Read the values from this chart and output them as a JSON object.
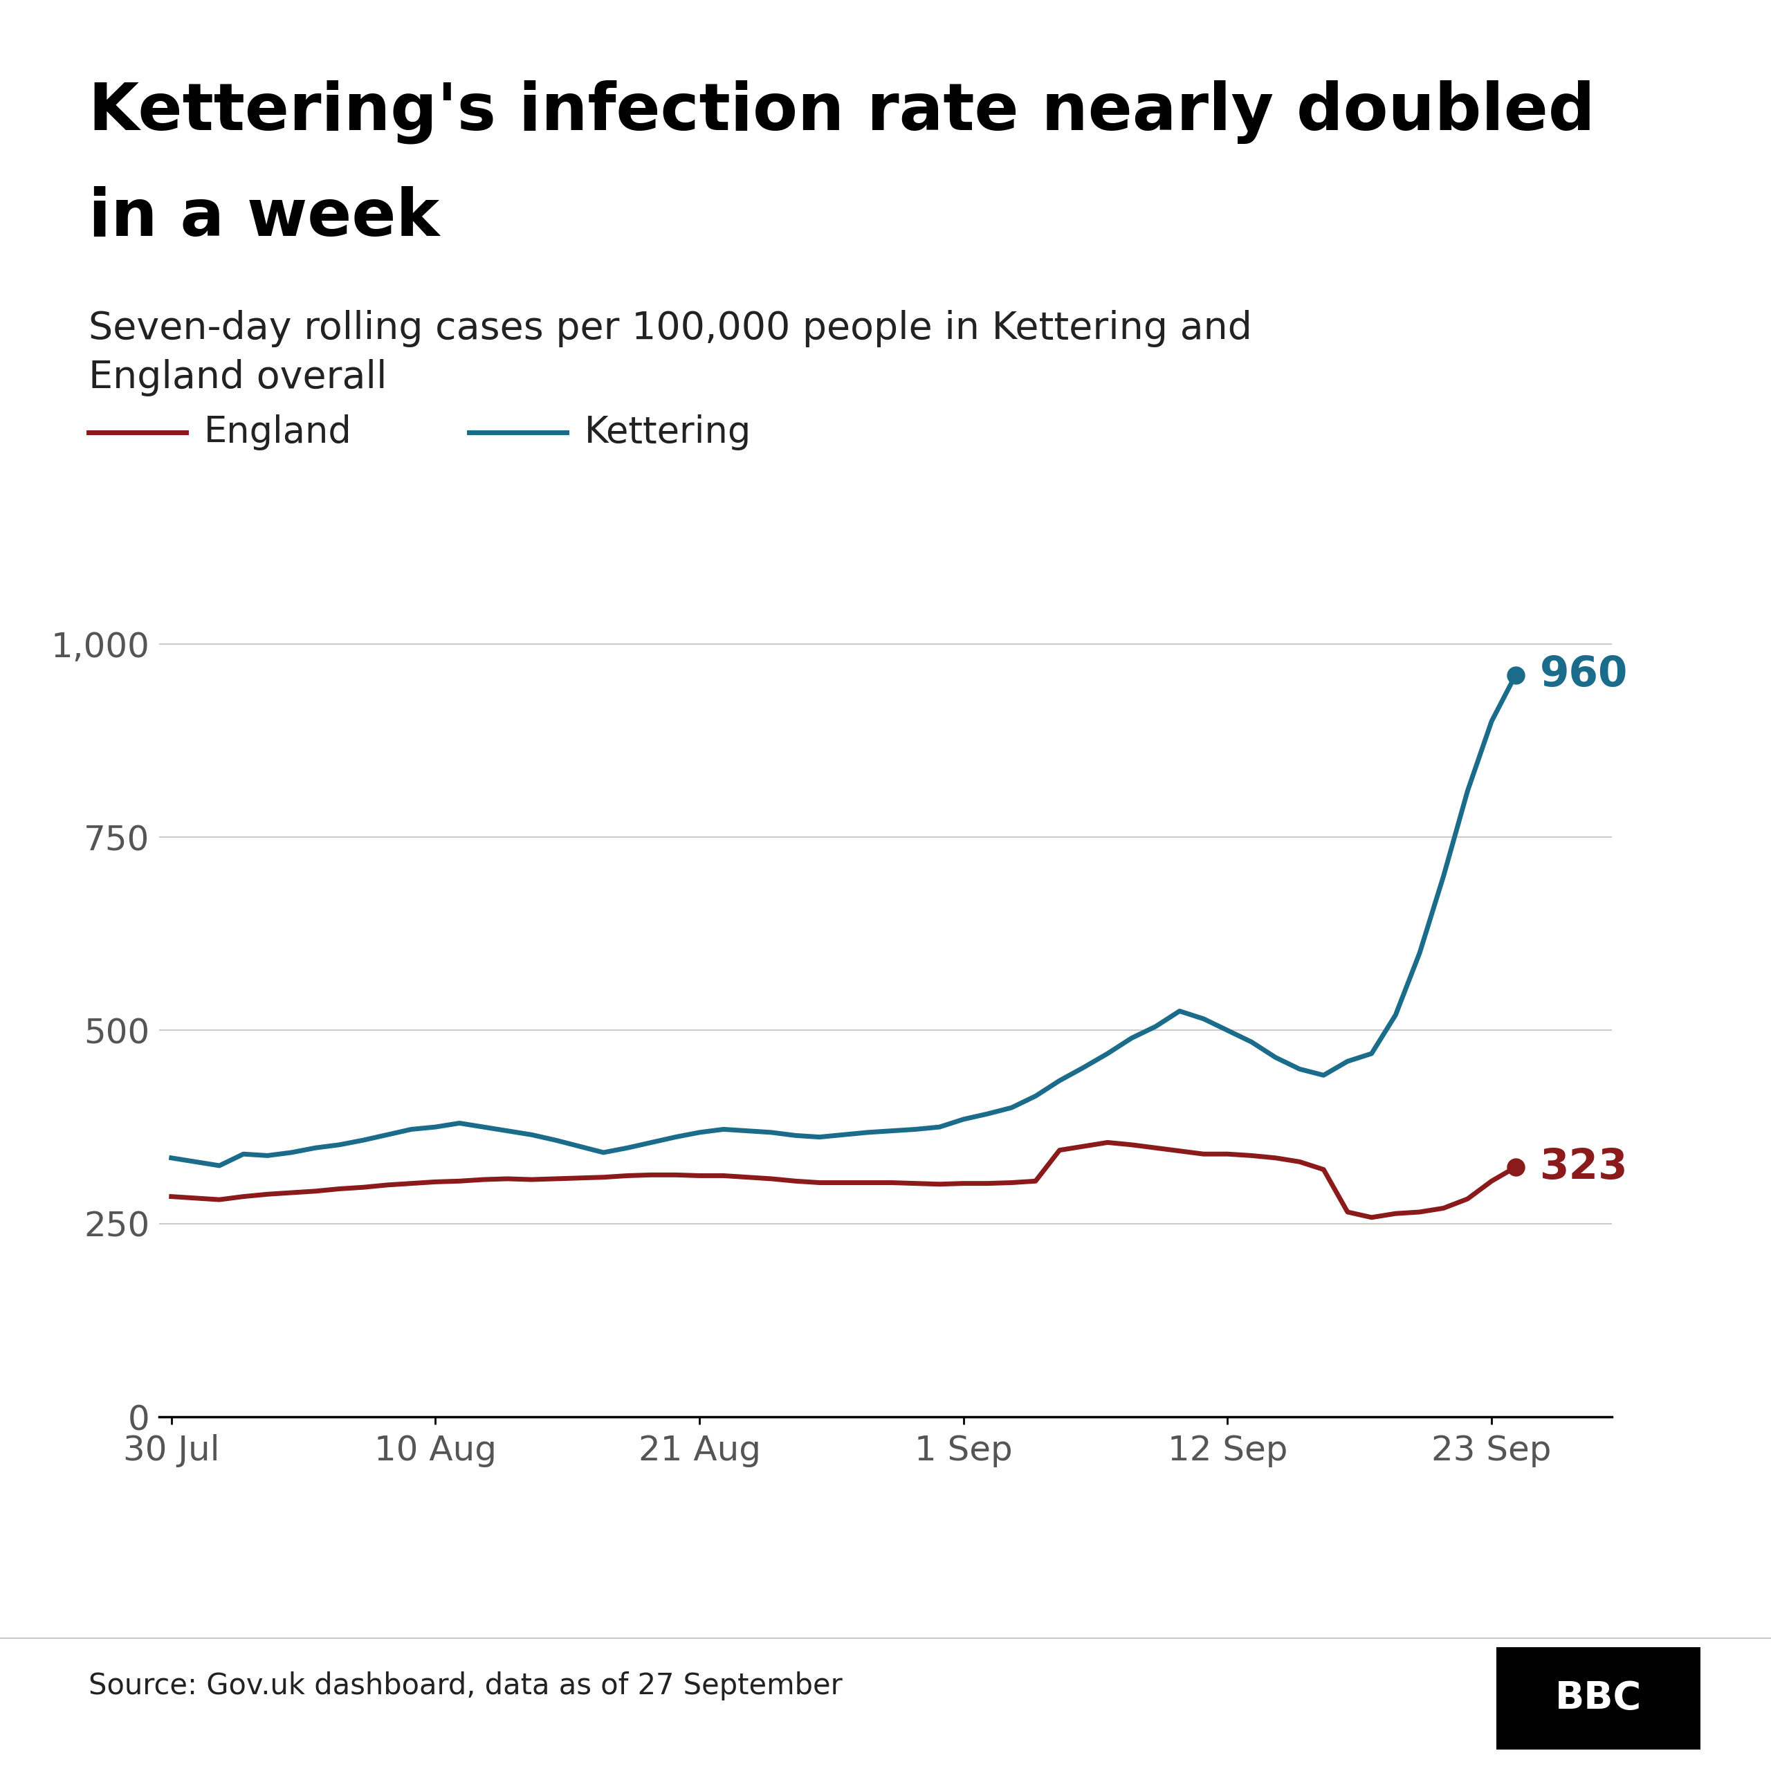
{
  "title_line1": "Kettering's infection rate nearly doubled",
  "title_line2": "in a week",
  "subtitle": "Seven-day rolling cases per 100,000 people in Kettering and\nEngland overall",
  "legend_england": "England",
  "legend_kettering": "Kettering",
  "source": "Source: Gov.uk dashboard, data as of 27 September",
  "england_color": "#8B1A1A",
  "kettering_color": "#1B6B8A",
  "title_fontsize": 68,
  "subtitle_fontsize": 40,
  "legend_fontsize": 38,
  "tick_fontsize": 36,
  "annotation_fontsize": 44,
  "source_fontsize": 30,
  "ylim": [
    0,
    1100
  ],
  "yticks": [
    0,
    250,
    500,
    750,
    1000
  ],
  "ytick_labels": [
    "0",
    "250",
    "500",
    "750",
    "1,000"
  ],
  "xtick_labels": [
    "30 Jul",
    "10 Aug",
    "21 Aug",
    "1 Sep",
    "12 Sep",
    "23 Sep"
  ],
  "england_final_value": "323",
  "kettering_final_value": "960",
  "england_x": [
    0,
    1,
    2,
    3,
    4,
    5,
    6,
    7,
    8,
    9,
    10,
    11,
    12,
    13,
    14,
    15,
    16,
    17,
    18,
    19,
    20,
    21,
    22,
    23,
    24,
    25,
    26,
    27,
    28,
    29,
    30,
    31,
    32,
    33,
    34,
    35,
    36,
    37,
    38,
    39,
    40,
    41,
    42,
    43,
    44,
    45,
    46,
    47,
    48,
    49,
    50,
    51,
    52,
    53,
    54,
    55,
    56
  ],
  "england_y": [
    285,
    283,
    281,
    285,
    288,
    290,
    292,
    295,
    297,
    300,
    302,
    304,
    305,
    307,
    308,
    307,
    308,
    309,
    310,
    312,
    313,
    313,
    312,
    312,
    310,
    308,
    305,
    303,
    303,
    303,
    303,
    302,
    301,
    302,
    302,
    303,
    305,
    345,
    350,
    355,
    352,
    348,
    344,
    340,
    340,
    338,
    335,
    330,
    320,
    265,
    258,
    263,
    265,
    270,
    282,
    305,
    323
  ],
  "kettering_x": [
    0,
    1,
    2,
    3,
    4,
    5,
    6,
    7,
    8,
    9,
    10,
    11,
    12,
    13,
    14,
    15,
    16,
    17,
    18,
    19,
    20,
    21,
    22,
    23,
    24,
    25,
    26,
    27,
    28,
    29,
    30,
    31,
    32,
    33,
    34,
    35,
    36,
    37,
    38,
    39,
    40,
    41,
    42,
    43,
    44,
    45,
    46,
    47,
    48,
    49,
    50,
    51,
    52,
    53,
    54,
    55,
    56
  ],
  "kettering_y": [
    335,
    330,
    325,
    340,
    338,
    342,
    348,
    352,
    358,
    365,
    372,
    375,
    380,
    375,
    370,
    365,
    358,
    350,
    342,
    348,
    355,
    362,
    368,
    372,
    370,
    368,
    364,
    362,
    365,
    368,
    370,
    372,
    375,
    385,
    392,
    400,
    415,
    435,
    452,
    470,
    490,
    505,
    525,
    515,
    500,
    485,
    465,
    450,
    442,
    460,
    470,
    520,
    600,
    700,
    810,
    900,
    960
  ],
  "x_tick_positions": [
    0,
    11,
    22,
    33,
    44,
    55
  ]
}
